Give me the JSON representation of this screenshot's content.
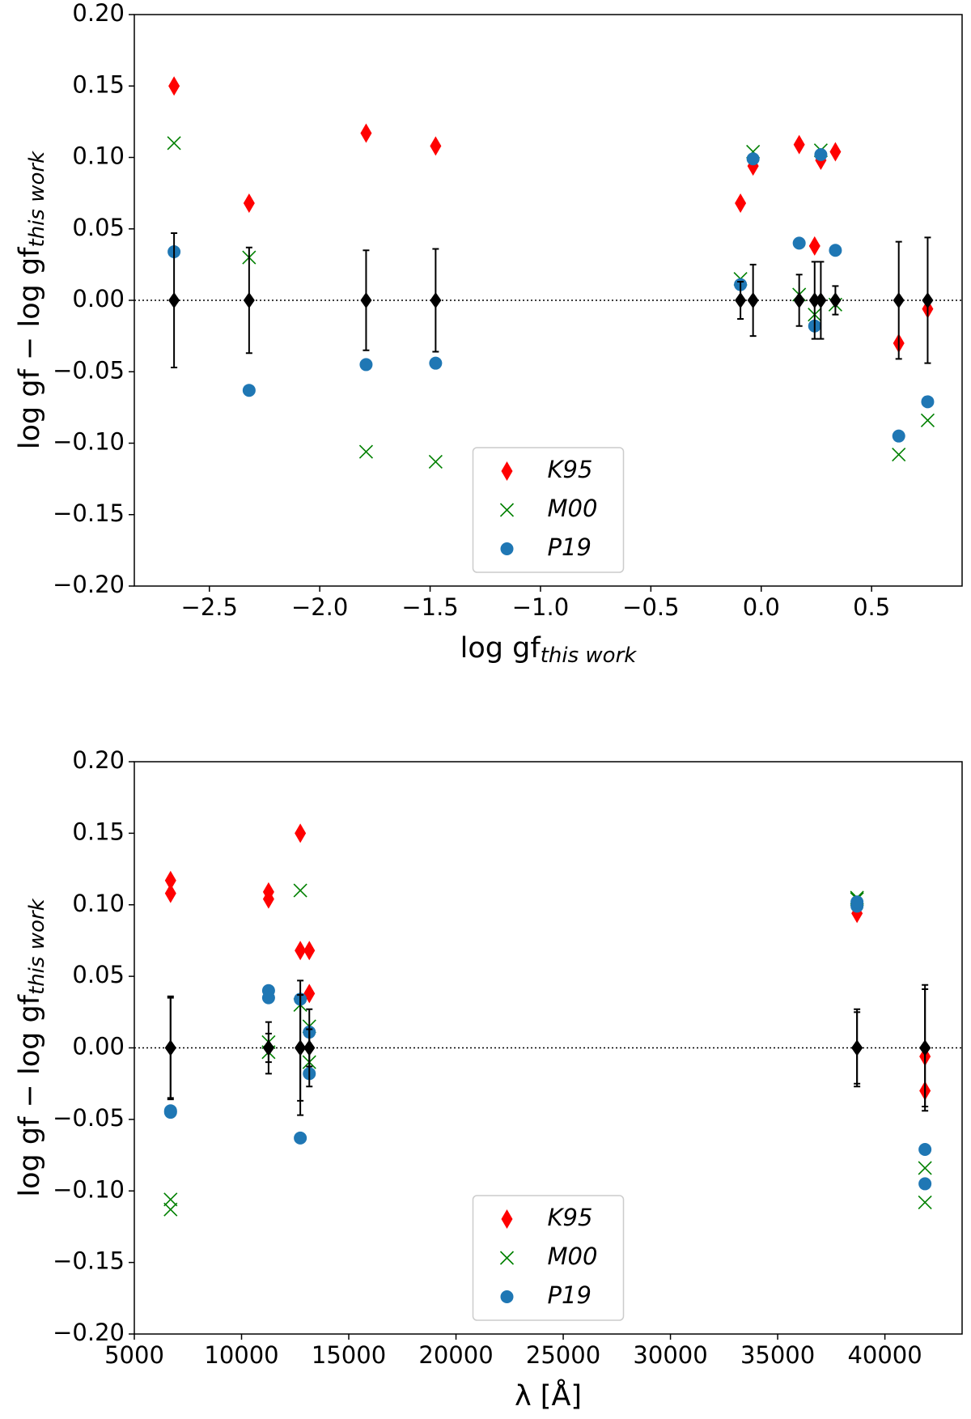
{
  "chart_data": [
    {
      "type": "scatter",
      "xlabel": "log gf",
      "xlabel_sub": "this work",
      "ylabel": "log gf − log gf",
      "ylabel_sub": "this work",
      "xlim": [
        -2.84,
        0.91
      ],
      "ylim": [
        -0.2,
        0.2
      ],
      "xticks": [
        {
          "value": -2.5,
          "label": "−2.5"
        },
        {
          "value": -2,
          "label": "−2.0"
        },
        {
          "value": -1.5,
          "label": "−1.5"
        },
        {
          "value": -1,
          "label": "−1.0"
        },
        {
          "value": -0.5,
          "label": "−0.5"
        },
        {
          "value": 0,
          "label": "0.0"
        },
        0.5
      ],
      "yticks": [
        {
          "value": -0.2,
          "label": "−0.20"
        },
        {
          "value": -0.15,
          "label": "−0.15"
        },
        {
          "value": -0.1,
          "label": "−0.10"
        },
        {
          "value": -0.05,
          "label": "−0.05"
        },
        {
          "value": 0,
          "label": "0.00"
        },
        0.05,
        {
          "value": 0.1,
          "label": "0.10"
        },
        0.15,
        {
          "value": 0.2,
          "label": "0.20"
        }
      ],
      "hline": 0,
      "legend": "lower center",
      "x": [
        -2.66,
        -2.32,
        -1.79,
        -1.475,
        -0.094,
        -0.037,
        0.172,
        0.242,
        0.27,
        0.336,
        0.623,
        0.754
      ],
      "series": [
        {
          "name": "K95",
          "color": "red",
          "marker": "diamond",
          "values": [
            0.15,
            0.068,
            0.117,
            0.108,
            0.068,
            0.094,
            0.109,
            0.038,
            0.098,
            0.104,
            -0.03,
            -0.006
          ]
        },
        {
          "name": "M00",
          "color": "green",
          "marker": "x",
          "values": [
            0.11,
            0.03,
            -0.106,
            -0.113,
            0.015,
            0.104,
            0.004,
            -0.01,
            0.105,
            -0.003,
            -0.108,
            -0.084
          ]
        },
        {
          "name": "P19",
          "color": "#1f77b4",
          "marker": "circle",
          "values": [
            0.034,
            -0.063,
            -0.045,
            -0.044,
            0.011,
            0.099,
            0.04,
            -0.018,
            0.102,
            0.035,
            -0.095,
            -0.071
          ]
        },
        {
          "color": "black",
          "marker": "diamond",
          "values": [
            0,
            0,
            0,
            0,
            0,
            0,
            0,
            0,
            0,
            0,
            0,
            0
          ],
          "errors": [
            0.047,
            0.037,
            0.035,
            0.036,
            0.013,
            0.025,
            0.018,
            0.027,
            0.027,
            0.01,
            0.041,
            0.044
          ]
        }
      ]
    },
    {
      "type": "scatter",
      "xlabel": "λ [Å]",
      "ylabel": "log gf − log gf",
      "ylabel_sub": "this work",
      "xlim": [
        5000,
        43600
      ],
      "ylim": [
        -0.2,
        0.2
      ],
      "xticks": [
        5000,
        10000,
        15000,
        20000,
        25000,
        30000,
        35000,
        40000
      ],
      "yticks": [
        {
          "value": -0.2,
          "label": "−0.20"
        },
        {
          "value": -0.15,
          "label": "−0.15"
        },
        {
          "value": -0.1,
          "label": "−0.10"
        },
        {
          "value": -0.05,
          "label": "−0.05"
        },
        {
          "value": 0,
          "label": "0.00"
        },
        0.05,
        {
          "value": 0.1,
          "label": "0.10"
        },
        0.15,
        {
          "value": 0.2,
          "label": "0.20"
        }
      ],
      "hline": 0,
      "legend": "lower center",
      "x": [
        12740,
        12740,
        6690,
        6690,
        13160,
        38700,
        11260,
        13160,
        38700,
        11260,
        41870,
        41870
      ],
      "series": [
        {
          "name": "K95",
          "color": "red",
          "marker": "diamond",
          "values": [
            0.15,
            0.068,
            0.117,
            0.108,
            0.068,
            0.094,
            0.109,
            0.038,
            0.098,
            0.104,
            -0.03,
            -0.006
          ]
        },
        {
          "name": "M00",
          "color": "green",
          "marker": "x",
          "values": [
            0.11,
            0.03,
            -0.106,
            -0.113,
            0.015,
            0.104,
            0.004,
            -0.01,
            0.105,
            -0.003,
            -0.108,
            -0.084
          ]
        },
        {
          "name": "P19",
          "color": "#1f77b4",
          "marker": "circle",
          "values": [
            0.034,
            -0.063,
            -0.045,
            -0.044,
            0.011,
            0.099,
            0.04,
            -0.018,
            0.102,
            0.035,
            -0.095,
            -0.071
          ]
        },
        {
          "color": "black",
          "marker": "diamond",
          "values": [
            0,
            0,
            0,
            0,
            0,
            0,
            0,
            0,
            0,
            0,
            0,
            0
          ],
          "errors": [
            0.047,
            0.037,
            0.035,
            0.036,
            0.013,
            0.025,
            0.018,
            0.027,
            0.027,
            0.01,
            0.041,
            0.044
          ]
        }
      ]
    }
  ]
}
